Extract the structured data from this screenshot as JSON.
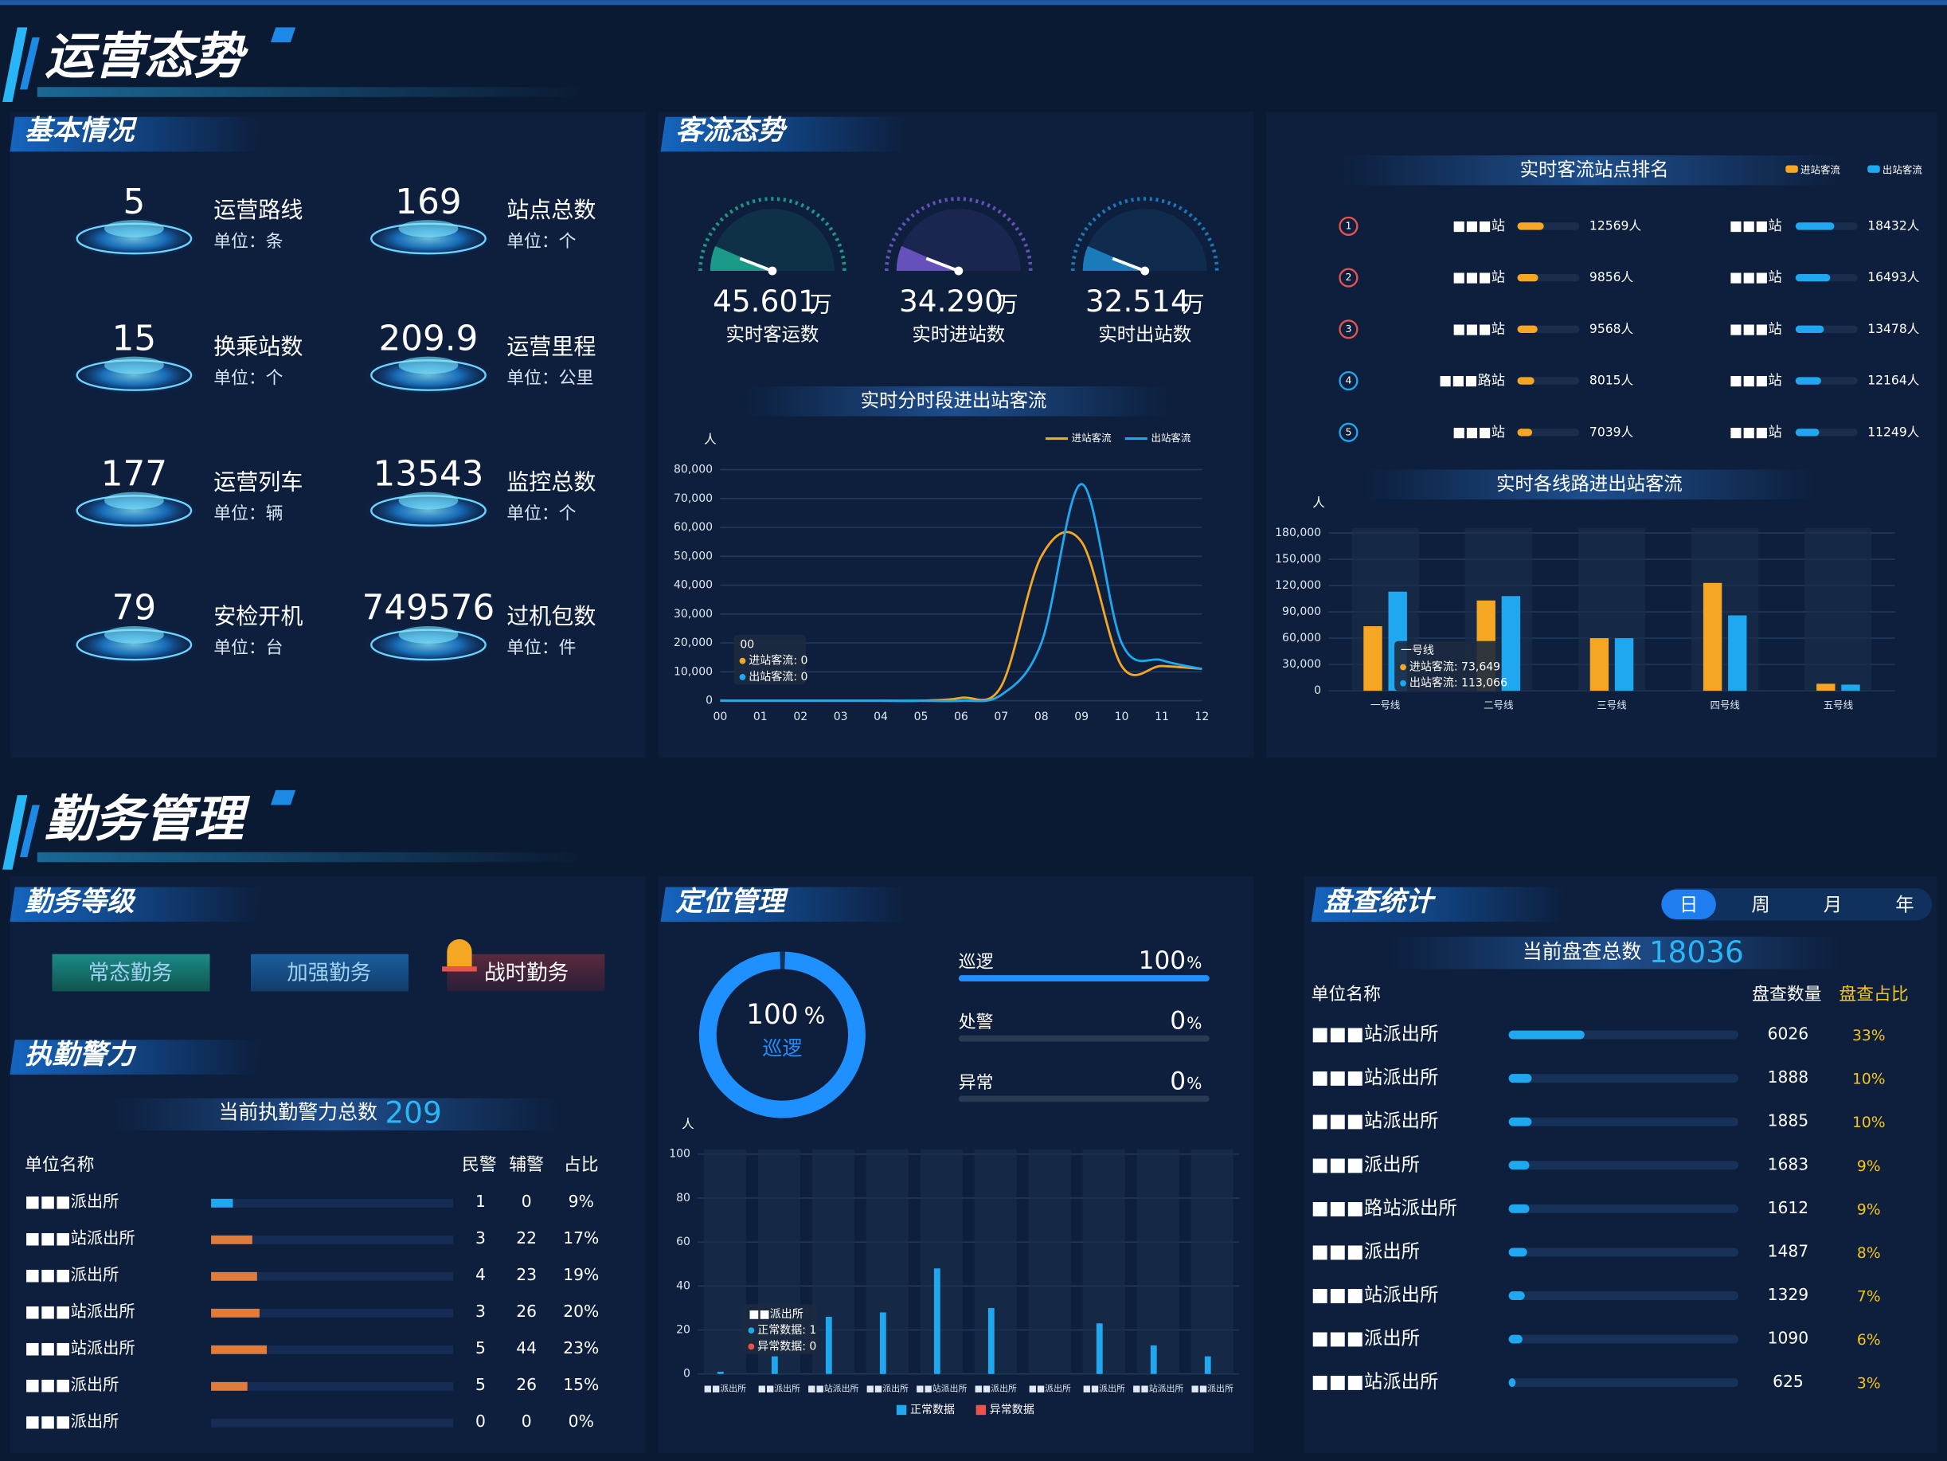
{
  "header1": "运营态势",
  "basic": {
    "title": "基本情况",
    "items": [
      {
        "value": "5",
        "label": "运营路线",
        "unit": "单位：条"
      },
      {
        "value": "169",
        "label": "站点总数",
        "unit": "单位：个"
      },
      {
        "value": "15",
        "label": "换乘站数",
        "unit": "单位：个"
      },
      {
        "value": "209.9",
        "label": "运营里程",
        "unit": "单位：公里"
      },
      {
        "value": "177",
        "label": "运营列车",
        "unit": "单位：辆"
      },
      {
        "value": "13543",
        "label": "监控总数",
        "unit": "单位：个"
      },
      {
        "value": "79",
        "label": "安检开机",
        "unit": "单位：台"
      },
      {
        "value": "749576",
        "label": "过机包数",
        "unit": "单位：件"
      }
    ]
  },
  "flow": {
    "title": "客流态势",
    "gauges": [
      {
        "value": "45.601",
        "unit": "万",
        "label": "实时客运数",
        "color": "#1fb59b"
      },
      {
        "value": "34.290",
        "unit": "万",
        "label": "实时进站数",
        "color": "#7b5cd6"
      },
      {
        "value": "32.514",
        "unit": "万",
        "label": "实时出站数",
        "color": "#1f8fd6"
      }
    ]
  },
  "hourly_chart": {
    "type": "line",
    "title": "实时分时段进出站客流",
    "y_unit": "人",
    "categories": [
      "00",
      "01",
      "02",
      "03",
      "04",
      "05",
      "06",
      "07",
      "08",
      "09",
      "10",
      "11",
      "12"
    ],
    "series": [
      {
        "name": "进站客流",
        "color": "#f5a623",
        "values": [
          0,
          0,
          0,
          0,
          0,
          0,
          1000,
          5000,
          50000,
          55000,
          12000,
          12000,
          11000
        ]
      },
      {
        "name": "出站客流",
        "color": "#1fa8f0",
        "values": [
          0,
          0,
          0,
          0,
          0,
          0,
          0,
          2000,
          20000,
          75000,
          20000,
          14000,
          11000
        ]
      }
    ],
    "ylim": [
      0,
      80000
    ],
    "yticks": [
      0,
      {
        "value": 10000,
        "label": "10,000"
      },
      {
        "value": 20000,
        "label": "20,000"
      },
      {
        "value": 30000,
        "label": "30,000"
      },
      {
        "value": 40000,
        "label": "40,000"
      },
      {
        "value": 50000,
        "label": "50,000"
      },
      {
        "value": 60000,
        "label": "60,000"
      },
      {
        "value": 70000,
        "label": "70,000"
      },
      {
        "value": 80000,
        "label": "80,000"
      }
    ],
    "tooltip": {
      "title": "00",
      "lines": [
        "进站客流: 0",
        "出站客流: 0"
      ]
    }
  },
  "station_ranking": {
    "title": "实时客流站点排名",
    "series": [
      {
        "name": "进站客流",
        "color": "#f5a623",
        "stations": [
          "■■■站",
          "■■■站",
          "■■■站",
          "■■■路站",
          "■■■站"
        ],
        "values": [
          12569,
          9856,
          9568,
          8015,
          7039
        ],
        "value_labels": [
          "12569人",
          "9856人",
          "9568人",
          "8015人",
          "7039人"
        ]
      },
      {
        "name": "出站客流",
        "color": "#1fa8f0",
        "stations": [
          "■■■站",
          "■■■站",
          "■■■站",
          "■■■站",
          "■■■站"
        ],
        "values": [
          18432,
          16493,
          13478,
          12164,
          11249
        ],
        "value_labels": [
          "18432人",
          "16493人",
          "13478人",
          "12164人",
          "11249人"
        ]
      }
    ]
  },
  "line_chart": {
    "type": "bar",
    "title": "实时各线路进出站客流",
    "y_unit": "人",
    "categories": [
      "一号线",
      "二号线",
      "三号线",
      "四号线",
      "五号线"
    ],
    "series": [
      {
        "name": "进站客流",
        "color": "#f5a623",
        "values": [
          73649,
          103000,
          60000,
          123000,
          8000
        ]
      },
      {
        "name": "出站客流",
        "color": "#1fa8f0",
        "values": [
          113066,
          108000,
          60000,
          86000,
          7000
        ]
      }
    ],
    "ylim": [
      0,
      180000
    ],
    "yticks": [
      0,
      {
        "value": 30000,
        "label": "30,000"
      },
      {
        "value": 60000,
        "label": "60,000"
      },
      {
        "value": 90000,
        "label": "90,000"
      },
      {
        "value": 120000,
        "label": "120,000"
      },
      {
        "value": 150000,
        "label": "150,000"
      },
      {
        "value": 180000,
        "label": "180,000"
      }
    ],
    "tooltip": {
      "title": "一号线",
      "lines": [
        "进站客流: 73,649",
        "出站客流: 113,066"
      ]
    }
  },
  "header2": "勤务管理",
  "duty_level": {
    "title": "勤务等级",
    "options": [
      "常态勤务",
      "加强勤务",
      "战时勤务"
    ]
  },
  "police": {
    "title": "执勤警力",
    "total_label": "当前执勤警力总数",
    "total": 209,
    "columns": [
      "单位名称",
      "民警",
      "辅警",
      "占比"
    ],
    "rows": [
      {
        "name": "■■■派出所",
        "police": 1,
        "auxiliary": 0,
        "share": 9,
        "share_label": "9%"
      },
      {
        "name": "■■■站派出所",
        "police": 3,
        "auxiliary": 22,
        "share": 17,
        "share_label": "17%"
      },
      {
        "name": "■■■派出所",
        "police": 4,
        "auxiliary": 23,
        "share": 19,
        "share_label": "19%"
      },
      {
        "name": "■■■站派出所",
        "police": 3,
        "auxiliary": 26,
        "share": 20,
        "share_label": "20%"
      },
      {
        "name": "■■■站派出所",
        "police": 5,
        "auxiliary": 44,
        "share": 23,
        "share_label": "23%"
      },
      {
        "name": "■■■派出所",
        "police": 5,
        "auxiliary": 26,
        "share": 15,
        "share_label": "15%"
      },
      {
        "name": "■■■派出所",
        "police": 0,
        "auxiliary": 0,
        "share": 0,
        "share_label": "0%"
      }
    ]
  },
  "positioning": {
    "title": "定位管理",
    "donut": {
      "value": 100,
      "unit": "%",
      "label": "巡逻"
    },
    "statuses": [
      {
        "name": "巡逻",
        "value": 100
      },
      {
        "name": "处警",
        "value": 0
      },
      {
        "name": "异常",
        "value": 0
      }
    ],
    "chart": {
      "type": "bar",
      "y_unit": "人",
      "categories": [
        "■■派出所",
        "■■派出所",
        "■■站派出所",
        "■■派出所",
        "■■站派出所",
        "■■派出所",
        "■■派出所",
        "■■派出所",
        "■■站派出所",
        "■■派出所"
      ],
      "series": [
        {
          "name": "正常数据",
          "color": "#1fa8f0",
          "values": [
            1,
            8,
            26,
            28,
            48,
            30,
            0,
            23,
            13,
            8
          ]
        },
        {
          "name": "异常数据",
          "color": "#e8534b",
          "values": [
            0,
            0,
            0,
            0,
            0,
            0,
            0,
            0,
            0,
            0
          ]
        }
      ],
      "ylim": [
        0,
        100
      ],
      "yticks": [
        0,
        20,
        40,
        60,
        80,
        100
      ],
      "tooltip": {
        "title": "■■派出所",
        "lines": [
          "正常数据: 1",
          "异常数据: 0"
        ]
      }
    }
  },
  "inspection": {
    "title": "盘查统计",
    "tabs": [
      "日",
      "周",
      "月",
      "年"
    ],
    "total_label": "当前盘查总数",
    "total": 18036,
    "columns": [
      "单位名称",
      "盘查数量",
      "盘查占比"
    ],
    "rows": [
      {
        "name": "■■■站派出所",
        "count": 6026,
        "share": 33,
        "share_label": "33%"
      },
      {
        "name": "■■■站派出所",
        "count": 1888,
        "share": 10,
        "share_label": "10%"
      },
      {
        "name": "■■■站派出所",
        "count": 1885,
        "share": 10,
        "share_label": "10%"
      },
      {
        "name": "■■■派出所",
        "count": 1683,
        "share": 9,
        "share_label": "9%"
      },
      {
        "name": "■■■路站派出所",
        "count": 1612,
        "share": 9,
        "share_label": "9%"
      },
      {
        "name": "■■■派出所",
        "count": 1487,
        "share": 8,
        "share_label": "8%"
      },
      {
        "name": "■■■站派出所",
        "count": 1329,
        "share": 7,
        "share_label": "7%"
      },
      {
        "name": "■■■派出所",
        "count": 1090,
        "share": 6,
        "share_label": "6%"
      },
      {
        "name": "■■■站派出所",
        "count": 625,
        "share": 3,
        "share_label": "3%"
      }
    ]
  }
}
